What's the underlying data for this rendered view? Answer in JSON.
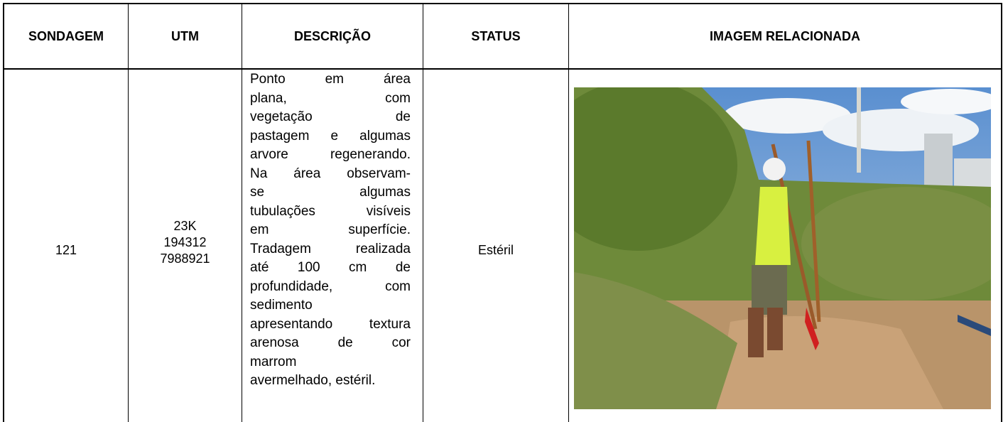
{
  "table": {
    "headers": [
      "SONDAGEM",
      "UTM",
      "DESCRIÇÃO",
      "STATUS",
      "IMAGEM RELACIONADA"
    ],
    "rows": [
      [
        "121",
        [
          "23K",
          "194312",
          "7988921"
        ],
        [
          "Ponto em área",
          "plana, com",
          "vegetação de",
          "pastagem e algumas",
          "arvore regenerando.",
          "Na área observam-",
          "se algumas",
          "tubulações visíveis",
          "em superfície.",
          "Tradagem realizada",
          "até 100 cm de",
          "profundidade, com",
          "sedimento",
          "apresentando textura",
          "arenosa de cor",
          "marrom",
          "avermelhado, estéril."
        ],
        "Estéril"
      ]
    ]
  }
}
